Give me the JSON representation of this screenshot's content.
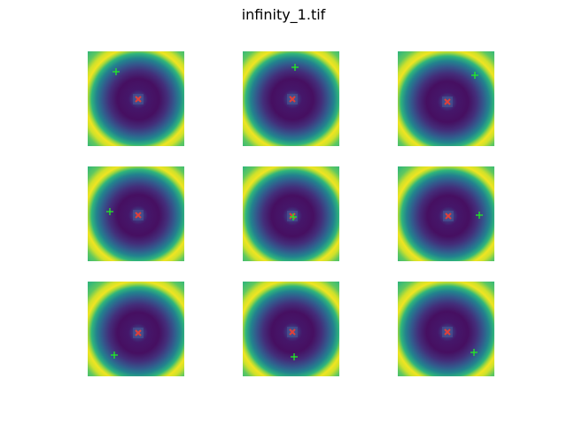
{
  "figure": {
    "title": "infinity_1.tif"
  },
  "colors": {
    "background": "#ffffff",
    "colormap": "viridis",
    "target_marker": "#e0403a",
    "probe_marker": "#22ee22"
  },
  "markers": {
    "target_symbol": "x",
    "probe_symbol": "+"
  },
  "panels": [
    {
      "id": "top-left",
      "probe_position": "upper-left"
    },
    {
      "id": "top-center",
      "probe_position": "upper"
    },
    {
      "id": "top-right",
      "probe_position": "upper-right"
    },
    {
      "id": "middle-left",
      "probe_position": "left"
    },
    {
      "id": "middle-center",
      "probe_position": "center"
    },
    {
      "id": "middle-right",
      "probe_position": "right"
    },
    {
      "id": "bottom-left",
      "probe_position": "lower-left"
    },
    {
      "id": "bottom-center",
      "probe_position": "lower"
    },
    {
      "id": "bottom-right",
      "probe_position": "lower-right"
    }
  ]
}
